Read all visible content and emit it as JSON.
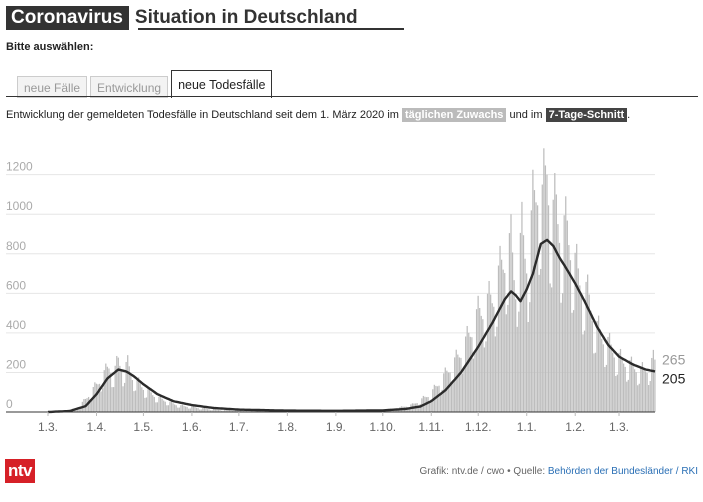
{
  "header": {
    "title_dark": "Coronavirus",
    "title_light": "Situation in Deutschland"
  },
  "prompt": "Bitte auswählen:",
  "tabs": [
    {
      "label": "neue Fälle",
      "active": false
    },
    {
      "label": "Entwicklung",
      "active": false
    },
    {
      "label": "neue Todesfälle",
      "active": true
    }
  ],
  "description": {
    "before": "Entwicklung der gemeldeten Todesfälle in Deutschland seit dem 1. März 2020 im ",
    "chip_daily": "täglichen Zuwachs",
    "middle": " und im ",
    "chip_avg": "7-Tage-Schnitt",
    "after": "."
  },
  "footer": {
    "credit": "Grafik: ntv.de / cwo • Quelle: ",
    "source": "Behörden der Bundesländer / RKI",
    "logo": "ntv"
  },
  "colors": {
    "bar": "#bdbdbd",
    "line": "#2b2b2b",
    "accent_red": "#d62027",
    "link": "#2a6fb5"
  },
  "chart_data": {
    "type": "bar",
    "title": "",
    "xlabel": "",
    "ylabel": "",
    "ylim": [
      0,
      1350
    ],
    "yticks": [
      0,
      200,
      400,
      600,
      800,
      1000,
      1200
    ],
    "xlim": [
      "2020-03-01",
      "2021-03-24"
    ],
    "x_ticks": [
      {
        "label": "1.3.",
        "date": "2020-03-01"
      },
      {
        "label": "1.4.",
        "date": "2020-04-01"
      },
      {
        "label": "1.5.",
        "date": "2020-05-01"
      },
      {
        "label": "1.6.",
        "date": "2020-06-01"
      },
      {
        "label": "1.7.",
        "date": "2020-07-01"
      },
      {
        "label": "1.8.",
        "date": "2020-08-01"
      },
      {
        "label": "1.9.",
        "date": "2020-09-01"
      },
      {
        "label": "1.10.",
        "date": "2020-10-01"
      },
      {
        "label": "1.11.",
        "date": "2020-11-01"
      },
      {
        "label": "1.12.",
        "date": "2020-12-01"
      },
      {
        "label": "1.1.",
        "date": "2021-01-01"
      },
      {
        "label": "1.2.",
        "date": "2021-02-01"
      },
      {
        "label": "1.3.",
        "date": "2021-03-01"
      }
    ],
    "grid": true,
    "series": [
      {
        "kind": "bar",
        "name": "täglichen Zuwachs",
        "points": [
          [
            "2020-03-01",
            0
          ],
          [
            "2020-03-10",
            2
          ],
          [
            "2020-03-15",
            8
          ],
          [
            "2020-03-20",
            22
          ],
          [
            "2020-03-25",
            60
          ],
          [
            "2020-03-30",
            110
          ],
          [
            "2020-04-04",
            160
          ],
          [
            "2020-04-09",
            220
          ],
          [
            "2020-04-12",
            180
          ],
          [
            "2020-04-15",
            250
          ],
          [
            "2020-04-18",
            200
          ],
          [
            "2020-04-21",
            230
          ],
          [
            "2020-04-24",
            170
          ],
          [
            "2020-04-28",
            140
          ],
          [
            "2020-05-02",
            110
          ],
          [
            "2020-05-06",
            90
          ],
          [
            "2020-05-10",
            70
          ],
          [
            "2020-05-15",
            55
          ],
          [
            "2020-05-20",
            40
          ],
          [
            "2020-05-25",
            30
          ],
          [
            "2020-06-01",
            25
          ],
          [
            "2020-06-10",
            15
          ],
          [
            "2020-06-20",
            10
          ],
          [
            "2020-07-01",
            8
          ],
          [
            "2020-07-15",
            6
          ],
          [
            "2020-08-01",
            5
          ],
          [
            "2020-08-15",
            6
          ],
          [
            "2020-09-01",
            6
          ],
          [
            "2020-09-15",
            8
          ],
          [
            "2020-10-01",
            10
          ],
          [
            "2020-10-10",
            18
          ],
          [
            "2020-10-20",
            35
          ],
          [
            "2020-10-26",
            60
          ],
          [
            "2020-11-01",
            90
          ],
          [
            "2020-11-06",
            140
          ],
          [
            "2020-11-11",
            190
          ],
          [
            "2020-11-16",
            240
          ],
          [
            "2020-11-21",
            300
          ],
          [
            "2020-11-26",
            380
          ],
          [
            "2020-12-01",
            470
          ],
          [
            "2020-12-06",
            510
          ],
          [
            "2020-12-11",
            560
          ],
          [
            "2020-12-16",
            700
          ],
          [
            "2020-12-19",
            760
          ],
          [
            "2020-12-22",
            800
          ],
          [
            "2020-12-25",
            600
          ],
          [
            "2020-12-29",
            850
          ],
          [
            "2021-01-02",
            700
          ],
          [
            "2021-01-05",
            980
          ],
          [
            "2021-01-08",
            1100
          ],
          [
            "2021-01-11",
            1000
          ],
          [
            "2021-01-14",
            1200
          ],
          [
            "2021-01-17",
            900
          ],
          [
            "2021-01-20",
            1000
          ],
          [
            "2021-01-23",
            850
          ],
          [
            "2021-01-27",
            880
          ],
          [
            "2021-02-01",
            700
          ],
          [
            "2021-02-05",
            620
          ],
          [
            "2021-02-10",
            540
          ],
          [
            "2021-02-15",
            400
          ],
          [
            "2021-02-20",
            350
          ],
          [
            "2021-02-25",
            300
          ],
          [
            "2021-03-01",
            260
          ],
          [
            "2021-03-05",
            240
          ],
          [
            "2021-03-10",
            220
          ],
          [
            "2021-03-15",
            200
          ],
          [
            "2021-03-20",
            210
          ],
          [
            "2021-03-24",
            265
          ]
        ]
      },
      {
        "kind": "line",
        "name": "7-Tage-Schnitt",
        "points": [
          [
            "2020-03-01",
            0
          ],
          [
            "2020-03-15",
            5
          ],
          [
            "2020-03-25",
            30
          ],
          [
            "2020-04-01",
            90
          ],
          [
            "2020-04-08",
            170
          ],
          [
            "2020-04-15",
            215
          ],
          [
            "2020-04-20",
            205
          ],
          [
            "2020-04-25",
            180
          ],
          [
            "2020-05-01",
            140
          ],
          [
            "2020-05-10",
            90
          ],
          [
            "2020-05-20",
            55
          ],
          [
            "2020-06-01",
            35
          ],
          [
            "2020-06-15",
            20
          ],
          [
            "2020-07-01",
            12
          ],
          [
            "2020-08-01",
            7
          ],
          [
            "2020-09-01",
            6
          ],
          [
            "2020-10-01",
            8
          ],
          [
            "2020-10-15",
            15
          ],
          [
            "2020-10-25",
            28
          ],
          [
            "2020-11-01",
            55
          ],
          [
            "2020-11-10",
            110
          ],
          [
            "2020-11-20",
            200
          ],
          [
            "2020-12-01",
            330
          ],
          [
            "2020-12-10",
            450
          ],
          [
            "2020-12-18",
            570
          ],
          [
            "2020-12-22",
            610
          ],
          [
            "2020-12-25",
            590
          ],
          [
            "2020-12-28",
            560
          ],
          [
            "2021-01-01",
            620
          ],
          [
            "2021-01-05",
            700
          ],
          [
            "2021-01-10",
            850
          ],
          [
            "2021-01-14",
            870
          ],
          [
            "2021-01-18",
            840
          ],
          [
            "2021-01-22",
            780
          ],
          [
            "2021-01-26",
            730
          ],
          [
            "2021-02-01",
            650
          ],
          [
            "2021-02-07",
            560
          ],
          [
            "2021-02-15",
            430
          ],
          [
            "2021-02-22",
            340
          ],
          [
            "2021-03-01",
            280
          ],
          [
            "2021-03-10",
            240
          ],
          [
            "2021-03-18",
            215
          ],
          [
            "2021-03-24",
            205
          ]
        ]
      }
    ],
    "end_labels": {
      "bar": "265",
      "line": "205"
    }
  }
}
